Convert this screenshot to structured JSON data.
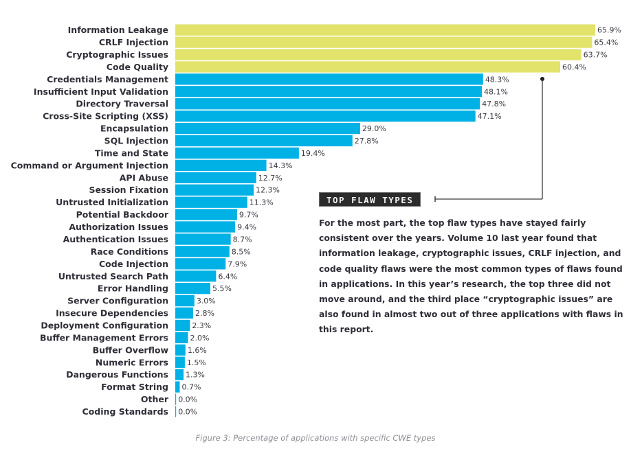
{
  "chart_data": {
    "type": "bar",
    "orientation": "horizontal",
    "title": "",
    "xlabel": "",
    "ylabel": "",
    "xlim": [
      0,
      66
    ],
    "grid": false,
    "value_suffix": "%",
    "colors": {
      "highlight": "#e2e36b",
      "default": "#00b1e5"
    },
    "highlight_count": 4,
    "categories": [
      "Information Leakage",
      "CRLF Injection",
      "Cryptographic Issues",
      "Code Quality",
      "Credentials Management",
      "Insufficient Input Validation",
      "Directory Traversal",
      "Cross-Site Scripting (XSS)",
      "Encapsulation",
      "SQL Injection",
      "Time and State",
      "Command or Argument Injection",
      "API Abuse",
      "Session Fixation",
      "Untrusted Initialization",
      "Potential Backdoor",
      "Authorization Issues",
      "Authentication Issues",
      "Race Conditions",
      "Code Injection",
      "Untrusted Search Path",
      "Error Handling",
      "Server Configuration",
      "Insecure Dependencies",
      "Deployment Configuration",
      "Buffer Management Errors",
      "Buffer Overflow",
      "Numeric Errors",
      "Dangerous Functions",
      "Format String",
      "Other",
      "Coding Standards"
    ],
    "values": [
      65.9,
      65.4,
      63.7,
      60.4,
      48.3,
      48.1,
      47.8,
      47.1,
      29.0,
      27.8,
      19.4,
      14.3,
      12.7,
      12.3,
      11.3,
      9.7,
      9.4,
      8.7,
      8.5,
      7.9,
      6.4,
      5.5,
      3.0,
      2.8,
      2.3,
      2.0,
      1.6,
      1.5,
      1.3,
      0.7,
      0.0,
      0.0
    ],
    "annotation": {
      "title": "TOP FLAW TYPES",
      "text": "For the most part, the top flaw types have stayed fairly consistent over the years. Volume 10 last year found that information leakage, cryptographic issues, CRLF injection, and code quality flaws were the most common types of flaws found in applications. In this year’s research, the top three did not move around, and the third place “cryptographic issues” are also found in almost two out of three applications with flaws in this report."
    },
    "caption": "Figure 3: Percentage of applications with specific CWE types"
  }
}
